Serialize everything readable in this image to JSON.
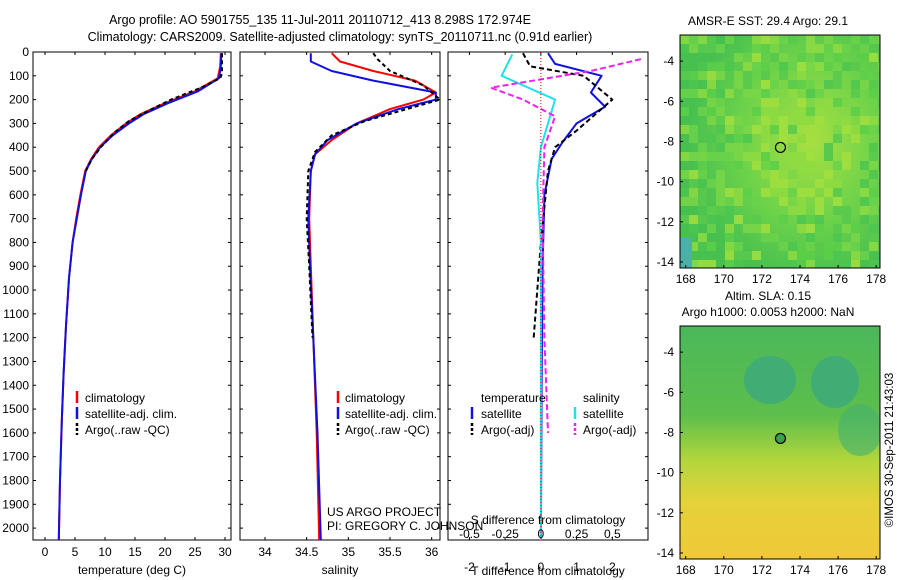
{
  "header": {
    "line1": "Argo profile: AO 5901755_135 11-Jul-2011 20110712_413 8.298S 172.974E",
    "line2": "Climatology: CARS2009. Satellite-adjusted climatology: synTS_20110711.nc (0.91d earlier)"
  },
  "credits": {
    "project": "US ARGO PROJECT",
    "pi": "PI: GREGORY C. JOHNSON",
    "imos": "©IMOS 30-Sep-2011 21:43:03"
  },
  "colors": {
    "climatology": "#ff0000",
    "satellite": "#1010e0",
    "argo": "#000000",
    "satellite_salinity": "#22e0ee",
    "argo_salinity": "#ee22ee"
  },
  "chart_data": [
    {
      "id": "temperature",
      "type": "line",
      "xlabel": "temperature (deg C)",
      "xlim": [
        -2,
        31
      ],
      "xticks": [
        0,
        5,
        10,
        15,
        20,
        25,
        30
      ],
      "xtick_labels": [
        "0",
        "5",
        "10",
        "15",
        "20",
        "25",
        "30"
      ],
      "ylim": [
        2050,
        0
      ],
      "yticks": [
        0,
        100,
        200,
        300,
        400,
        500,
        600,
        700,
        800,
        900,
        1000,
        1100,
        1200,
        1300,
        1400,
        1500,
        1600,
        1700,
        1800,
        1900,
        2000
      ],
      "ytick_labels": [
        "0",
        "100",
        "200",
        "300",
        "400",
        "500",
        "600",
        "700",
        "800",
        "900",
        "1000",
        "1100",
        "1200",
        "1300",
        "1400",
        "1500",
        "1600",
        "1700",
        "1800",
        "1900",
        "2000"
      ],
      "legend": [
        "climatology",
        "satellite-adj. clim.",
        "Argo(..raw -QC)"
      ],
      "series": [
        {
          "name": "climatology",
          "color": "#ff0000",
          "dash": "",
          "points": [
            [
              29.3,
              5
            ],
            [
              29.2,
              60
            ],
            [
              28.8,
              110
            ],
            [
              25,
              165
            ],
            [
              20,
              215
            ],
            [
              16,
              260
            ],
            [
              13.5,
              300
            ],
            [
              11,
              350
            ],
            [
              9,
              400
            ],
            [
              7.7,
              450
            ],
            [
              6.7,
              500
            ],
            [
              5.9,
              600
            ],
            [
              5.2,
              700
            ],
            [
              4.6,
              800
            ],
            [
              4,
              950
            ],
            [
              3.5,
              1150
            ],
            [
              3.1,
              1350
            ],
            [
              2.8,
              1550
            ],
            [
              2.5,
              1800
            ],
            [
              2.3,
              2050
            ]
          ]
        },
        {
          "name": "satellite-adj. clim.",
          "color": "#1010e0",
          "dash": "",
          "points": [
            [
              29.4,
              5
            ],
            [
              29.3,
              60
            ],
            [
              29,
              110
            ],
            [
              25.5,
              165
            ],
            [
              20.5,
              215
            ],
            [
              16.5,
              260
            ],
            [
              14,
              300
            ],
            [
              11.3,
              350
            ],
            [
              9.2,
              400
            ],
            [
              7.8,
              450
            ],
            [
              6.8,
              500
            ],
            [
              6,
              600
            ],
            [
              5.3,
              700
            ],
            [
              4.6,
              800
            ],
            [
              4,
              950
            ],
            [
              3.5,
              1150
            ],
            [
              3.1,
              1350
            ],
            [
              2.8,
              1550
            ],
            [
              2.5,
              1800
            ],
            [
              2.3,
              2050
            ]
          ]
        },
        {
          "name": "Argo(..raw -QC)",
          "color": "#000000",
          "dash": "4,3",
          "points": [
            [
              29.5,
              5
            ],
            [
              29.5,
              90
            ],
            [
              29.2,
              110
            ],
            [
              26,
              150
            ],
            [
              21,
              200
            ],
            [
              17,
              250
            ],
            [
              14,
              290
            ],
            [
              11.5,
              340
            ],
            [
              9.3,
              400
            ],
            [
              7.8,
              450
            ],
            [
              6.8,
              500
            ]
          ]
        }
      ]
    },
    {
      "id": "salinity",
      "type": "line",
      "xlabel": "salinity",
      "xlim": [
        33.7,
        36.1
      ],
      "xticks": [
        34,
        34.5,
        35,
        35.5,
        36
      ],
      "xtick_labels": [
        "34",
        "34.5",
        "35",
        "35.5",
        "36"
      ],
      "ylim": [
        2050,
        0
      ],
      "legend": [
        "climatology",
        "satellite-adj. clim.",
        "Argo(..raw -QC)"
      ],
      "series": [
        {
          "name": "climatology",
          "color": "#ff0000",
          "dash": "",
          "points": [
            [
              34.8,
              5
            ],
            [
              34.9,
              40
            ],
            [
              35.3,
              80
            ],
            [
              35.8,
              120
            ],
            [
              36.05,
              170
            ],
            [
              35.9,
              200
            ],
            [
              35.5,
              240
            ],
            [
              35.1,
              300
            ],
            [
              34.8,
              370
            ],
            [
              34.6,
              430
            ],
            [
              34.55,
              500
            ],
            [
              34.53,
              700
            ],
            [
              34.55,
              900
            ],
            [
              34.58,
              1200
            ],
            [
              34.62,
              1600
            ],
            [
              34.65,
              2050
            ]
          ]
        },
        {
          "name": "satellite-adj. clim.",
          "color": "#1010e0",
          "dash": "",
          "points": [
            [
              34.55,
              5
            ],
            [
              34.55,
              40
            ],
            [
              34.8,
              80
            ],
            [
              35.3,
              120
            ],
            [
              36.05,
              170
            ],
            [
              36.05,
              200
            ],
            [
              35.6,
              240
            ],
            [
              35.1,
              300
            ],
            [
              34.75,
              370
            ],
            [
              34.6,
              430
            ],
            [
              34.55,
              500
            ],
            [
              34.52,
              700
            ],
            [
              34.54,
              900
            ],
            [
              34.58,
              1200
            ],
            [
              34.63,
              1600
            ],
            [
              34.67,
              2050
            ]
          ]
        },
        {
          "name": "Argo(..raw -QC)",
          "color": "#000000",
          "dash": "4,3",
          "points": [
            [
              35.3,
              5
            ],
            [
              35.35,
              30
            ],
            [
              35.5,
              80
            ],
            [
              35.9,
              140
            ],
            [
              36.1,
              200
            ],
            [
              35.7,
              240
            ],
            [
              35.2,
              290
            ],
            [
              34.8,
              350
            ],
            [
              34.6,
              420
            ],
            [
              34.52,
              500
            ],
            [
              34.5,
              700
            ],
            [
              34.53,
              900
            ],
            [
              34.57,
              1200
            ]
          ]
        }
      ]
    },
    {
      "id": "difference",
      "type": "line",
      "xlabel": "T difference from climatology",
      "xlabel2": "S difference from climatology",
      "xlim": [
        -2.6,
        3
      ],
      "xticks": [
        -2,
        -1,
        0,
        1,
        2
      ],
      "xtick_labels": [
        "-2",
        "-1",
        "0",
        "1",
        "2"
      ],
      "sticks": [
        -0.5,
        -0.25,
        0,
        0.25,
        0.5
      ],
      "stick_labels": [
        "-0.5",
        "-0.25",
        "0",
        "0.25",
        "0.5"
      ],
      "ylim": [
        2050,
        0
      ],
      "legend_titles": [
        "temperature",
        "salinity"
      ],
      "legend": [
        "satellite",
        "Argo(-adj)",
        "satellite",
        "Argo(-adj)"
      ],
      "series": [
        {
          "name": "temperature satellite",
          "color": "#1010e0",
          "dash": "",
          "points": [
            [
              0.2,
              5
            ],
            [
              0.4,
              50
            ],
            [
              1.7,
              100
            ],
            [
              1.4,
              170
            ],
            [
              1.8,
              230
            ],
            [
              1.0,
              300
            ],
            [
              0.6,
              380
            ],
            [
              0.3,
              450
            ],
            [
              0.1,
              600
            ],
            [
              0.05,
              900
            ],
            [
              0.02,
              1400
            ],
            [
              0,
              2050
            ]
          ]
        },
        {
          "name": "temperature Argo(-adj)",
          "color": "#000000",
          "dash": "5,3",
          "points": [
            [
              -0.5,
              5
            ],
            [
              -0.3,
              60
            ],
            [
              1.2,
              100
            ],
            [
              2.0,
              200
            ],
            [
              1.0,
              330
            ],
            [
              0.4,
              400
            ],
            [
              0.2,
              500
            ],
            [
              0,
              800
            ],
            [
              -0.1,
              1000
            ],
            [
              -0.2,
              1200
            ]
          ]
        },
        {
          "name": "salinity satellite",
          "color": "#22e0ee",
          "dash": "",
          "points": [
            [
              -0.8,
              10
            ],
            [
              -1.1,
              100
            ],
            [
              0.4,
              200
            ],
            [
              0.2,
              300
            ],
            [
              0.0,
              400
            ],
            [
              -0.1,
              550
            ],
            [
              0.0,
              800
            ],
            [
              0.0,
              1300
            ],
            [
              0.0,
              2050
            ]
          ]
        },
        {
          "name": "salinity Argo(-adj)",
          "color": "#ee22ee",
          "dash": "6,3",
          "points": [
            [
              2.8,
              30
            ],
            [
              1.4,
              80
            ],
            [
              -1.4,
              150
            ],
            [
              -0.5,
              200
            ],
            [
              0.4,
              270
            ],
            [
              0.1,
              400
            ],
            [
              0.05,
              700
            ],
            [
              0.1,
              1200
            ],
            [
              0.2,
              1600
            ]
          ]
        }
      ]
    },
    {
      "id": "sst-map",
      "type": "heatmap",
      "title": "AMSR-E SST: 29.4 Argo: 29.1",
      "xlim": [
        167.7,
        178.2
      ],
      "ylim": [
        -14.3,
        -2.7
      ],
      "xticks": [
        168,
        170,
        172,
        174,
        176,
        178
      ],
      "xtick_labels": [
        "168",
        "170",
        "172",
        "174",
        "176",
        "178"
      ],
      "yticks": [
        -4,
        -6,
        -8,
        -10,
        -12,
        -14
      ],
      "ytick_labels": [
        "-4",
        "-6",
        "-8",
        "-10",
        "-12",
        "-14"
      ],
      "marker": [
        172.974,
        -8.298
      ]
    },
    {
      "id": "sla-map",
      "type": "heatmap",
      "title": "Altim. SLA: 0.15",
      "subtitle": "Argo h1000: 0.0053 h2000: NaN",
      "xlim": [
        167.7,
        178.2
      ],
      "ylim": [
        -14.3,
        -2.7
      ],
      "xticks": [
        168,
        170,
        172,
        174,
        176,
        178
      ],
      "xtick_labels": [
        "168",
        "170",
        "172",
        "174",
        "176",
        "178"
      ],
      "yticks": [
        -4,
        -6,
        -8,
        -10,
        -12,
        -14
      ],
      "ytick_labels": [
        "-4",
        "-6",
        "-8",
        "-10",
        "-12",
        "-14"
      ],
      "marker": [
        172.974,
        -8.298
      ]
    }
  ]
}
